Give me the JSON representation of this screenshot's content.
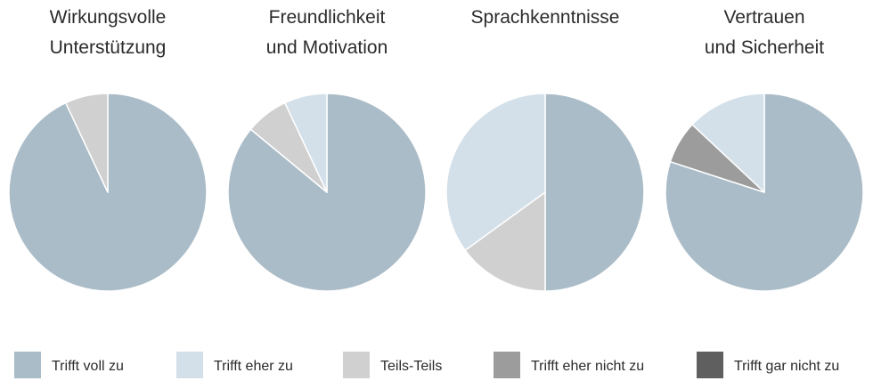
{
  "chart_data": {
    "type": "pie",
    "legend": {
      "placement": "bottom",
      "entries": [
        {
          "label": "Trifft voll zu",
          "color": "#aabcc8"
        },
        {
          "label": "Trifft eher zu",
          "color": "#d3e0e9"
        },
        {
          "label": "Teils-Teils",
          "color": "#d0d0d0"
        },
        {
          "label": "Trifft eher nicht zu",
          "color": "#9c9c9c"
        },
        {
          "label": "Trifft gar nicht zu",
          "color": "#5f5f5f"
        }
      ]
    },
    "categories": [
      "Trifft voll zu",
      "Trifft eher zu",
      "Teils-Teils",
      "Trifft eher nicht zu",
      "Trifft gar nicht zu"
    ],
    "charts": [
      {
        "title_lines": [
          "Wirkungsvolle",
          "Unterstützung"
        ],
        "values": [
          93,
          0,
          7,
          0,
          0
        ]
      },
      {
        "title_lines": [
          "Freundlichkeit",
          "und Motivation"
        ],
        "values": [
          86,
          7,
          7,
          0,
          0
        ]
      },
      {
        "title_lines": [
          "Sprachkenntnisse"
        ],
        "values": [
          50,
          35,
          15,
          0,
          0
        ]
      },
      {
        "title_lines": [
          "Vertrauen",
          "und Sicherheit"
        ],
        "values": [
          80,
          13,
          0,
          7,
          0
        ]
      }
    ]
  }
}
